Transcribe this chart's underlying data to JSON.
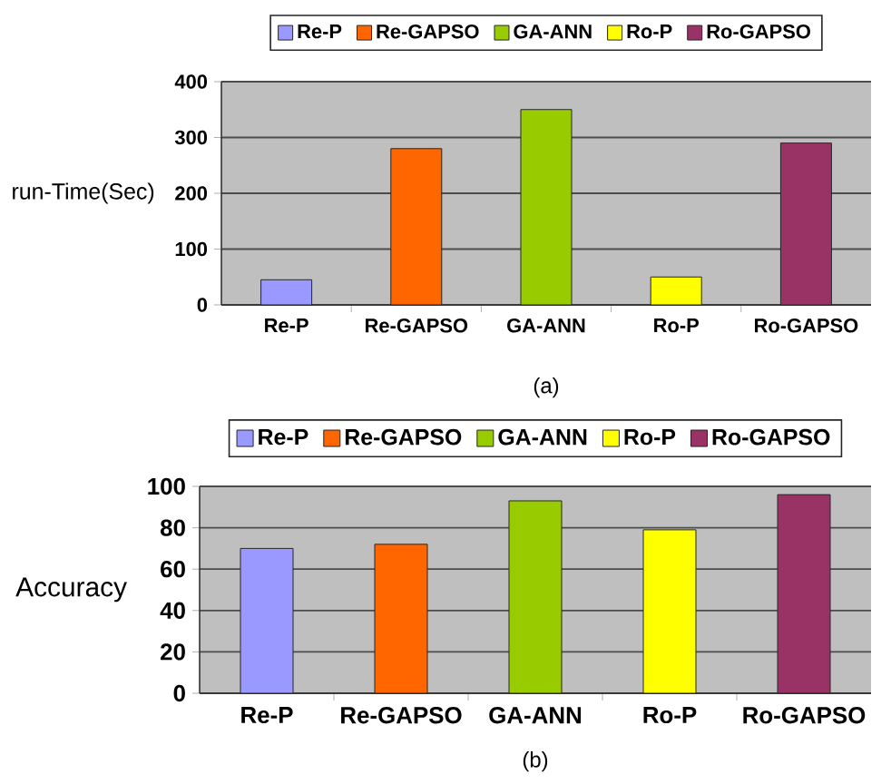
{
  "chart_data": [
    {
      "type": "bar",
      "ylabel": "run-Time(Sec)",
      "categories": [
        "Re-P",
        "Re-GAPSO",
        "GA-ANN",
        "Ro-P",
        "Ro-GAPSO"
      ],
      "series": [
        {
          "name": "Re-P",
          "color": "#9999ff",
          "values": [
            45,
            null,
            null,
            null,
            null
          ]
        },
        {
          "name": "Re-GAPSO",
          "color": "#ff6600",
          "values": [
            null,
            280,
            null,
            null,
            null
          ]
        },
        {
          "name": "GA-ANN",
          "color": "#99cc00",
          "values": [
            null,
            null,
            350,
            null,
            null
          ]
        },
        {
          "name": "Ro-P",
          "color": "#ffff00",
          "values": [
            null,
            null,
            null,
            50,
            null
          ]
        },
        {
          "name": "Ro-GAPSO",
          "color": "#993366",
          "values": [
            null,
            null,
            null,
            null,
            290
          ]
        }
      ],
      "ylim": [
        0,
        400
      ],
      "yticks": [
        0,
        100,
        200,
        300,
        400
      ],
      "grid": "y",
      "legend": "top",
      "annotations": [
        "(a)"
      ]
    },
    {
      "type": "bar",
      "ylabel": "Accuracy",
      "categories": [
        "Re-P",
        "Re-GAPSO",
        "GA-ANN",
        "Ro-P",
        "Ro-GAPSO"
      ],
      "series": [
        {
          "name": "Re-P",
          "color": "#9999ff",
          "values": [
            70,
            null,
            null,
            null,
            null
          ]
        },
        {
          "name": "Re-GAPSO",
          "color": "#ff6600",
          "values": [
            null,
            72,
            null,
            null,
            null
          ]
        },
        {
          "name": "GA-ANN",
          "color": "#99cc00",
          "values": [
            null,
            null,
            93,
            null,
            null
          ]
        },
        {
          "name": "Ro-P",
          "color": "#ffff00",
          "values": [
            null,
            null,
            null,
            79,
            null
          ]
        },
        {
          "name": "Ro-GAPSO",
          "color": "#993366",
          "values": [
            null,
            null,
            null,
            null,
            96
          ]
        }
      ],
      "ylim": [
        0,
        100
      ],
      "yticks": [
        0,
        20,
        40,
        60,
        80,
        100
      ],
      "grid": "y",
      "legend": "top",
      "annotations": [
        "(b)"
      ]
    }
  ]
}
